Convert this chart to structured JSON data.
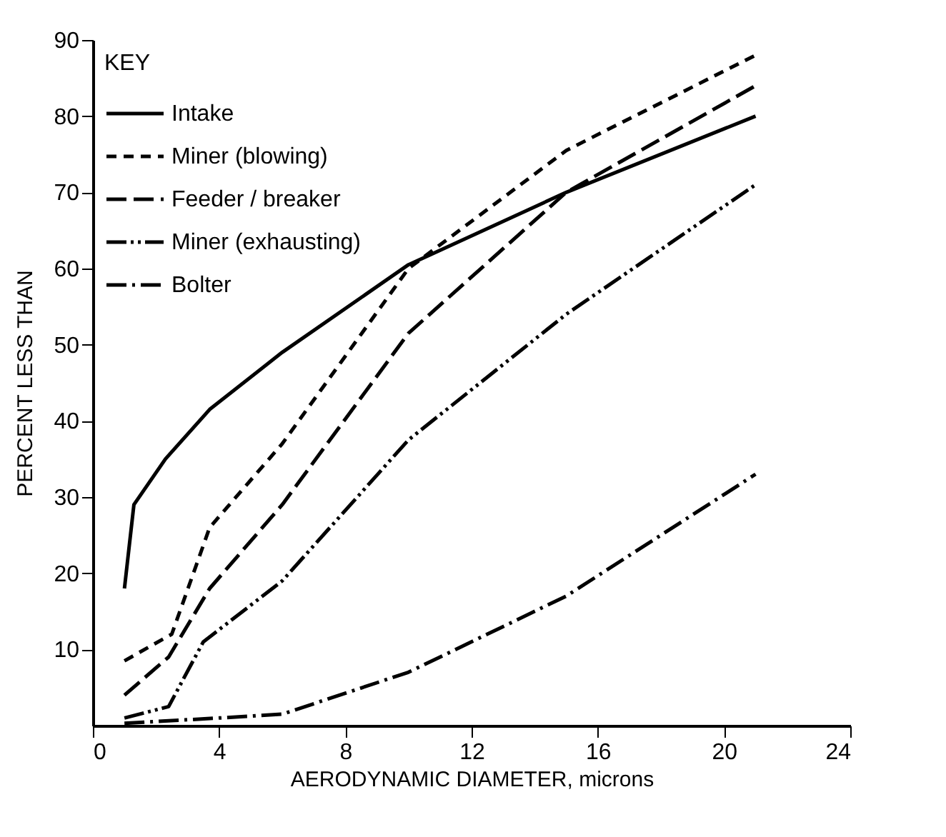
{
  "chart_data": {
    "type": "line",
    "xlabel": "AERODYNAMIC DIAMETER, microns",
    "ylabel": "PERCENT LESS THAN",
    "legend_title": "KEY",
    "legend": "top left",
    "grid": false,
    "xlim": [
      0,
      24
    ],
    "xticks": [
      0,
      4,
      8,
      12,
      16,
      20,
      24
    ],
    "ylim": [
      0,
      90
    ],
    "yticks": [
      10,
      20,
      30,
      40,
      50,
      60,
      70,
      80,
      90
    ],
    "series": [
      {
        "name": "Intake",
        "color": "#000000",
        "line_style": "solid",
        "x": [
          1,
          1.3,
          2.3,
          3.7,
          6,
          10,
          15,
          21
        ],
        "values": [
          18,
          29,
          35,
          41.5,
          49,
          60.5,
          70,
          80
        ]
      },
      {
        "name": "Miner (blowing)",
        "color": "#000000",
        "line_style": "dashed",
        "x": [
          1,
          2.5,
          3.7,
          6,
          10,
          15,
          21
        ],
        "values": [
          8.5,
          12,
          26,
          37,
          60,
          75.5,
          88
        ]
      },
      {
        "name": "Feeder / breaker",
        "color": "#000000",
        "line_style": "longdash",
        "x": [
          1,
          2.4,
          3.7,
          6,
          10,
          15,
          21
        ],
        "values": [
          4,
          9,
          18,
          29,
          51.5,
          70,
          84
        ]
      },
      {
        "name": "Miner (exhausting)",
        "color": "#000000",
        "line_style": "dashdotdot",
        "x": [
          1,
          2.4,
          3.5,
          6,
          10,
          15,
          21
        ],
        "values": [
          1,
          2.5,
          11,
          19,
          37.5,
          54,
          71
        ]
      },
      {
        "name": "Bolter",
        "color": "#000000",
        "line_style": "dashdot",
        "x": [
          1,
          4,
          6,
          10,
          15,
          21
        ],
        "values": [
          0.3,
          1,
          1.5,
          7,
          17,
          33
        ]
      }
    ]
  }
}
